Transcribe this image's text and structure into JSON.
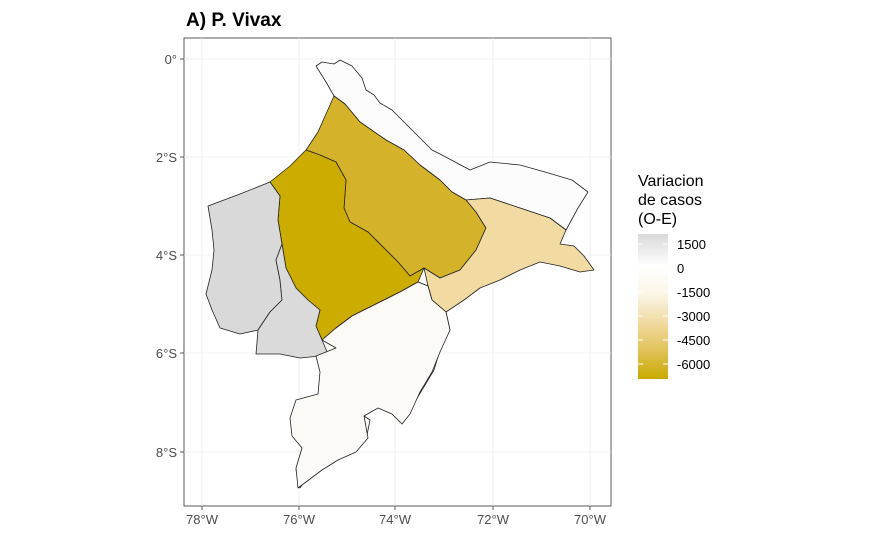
{
  "title": "A) P. Vivax",
  "axes": {
    "x_ticks": [
      "78°W",
      "76°W",
      "74°W",
      "72°W",
      "70°W"
    ],
    "y_ticks": [
      "0°",
      "2°S",
      "4°S",
      "6°S",
      "8°S"
    ]
  },
  "legend": {
    "title_lines": [
      "Variacion",
      "de casos",
      "(O-E)"
    ],
    "labels": [
      "1500",
      "0",
      "-1500",
      "-3000",
      "-4500",
      "-6000"
    ],
    "colors": {
      "high": "#d9d9d9",
      "zero": "#ffffff",
      "mid": "#f2dca6",
      "low": "#c9a900"
    }
  },
  "regions": [
    {
      "name": "northeast",
      "value": 300,
      "color": "#fcfcfc"
    },
    {
      "name": "north-central",
      "value": -5400,
      "color": "#d4b32a"
    },
    {
      "name": "central-west",
      "value": -6200,
      "color": "#cdac00"
    },
    {
      "name": "east",
      "value": -2300,
      "color": "#f1dba3"
    },
    {
      "name": "west",
      "value": 1400,
      "color": "#d9d9d9"
    },
    {
      "name": "southwest",
      "value": 1400,
      "color": "#dadada"
    },
    {
      "name": "south",
      "value": -150,
      "color": "#fbfaf7"
    }
  ],
  "chart_data": {
    "type": "choropleth",
    "title": "A) P. Vivax",
    "legend_title": "Variacion de casos (O-E)",
    "legend_breaks": [
      1500,
      0,
      -1500,
      -3000,
      -4500,
      -6000
    ],
    "xlim": [
      "78°W",
      "70°W"
    ],
    "ylim": [
      "8°S",
      "0°"
    ]
  }
}
